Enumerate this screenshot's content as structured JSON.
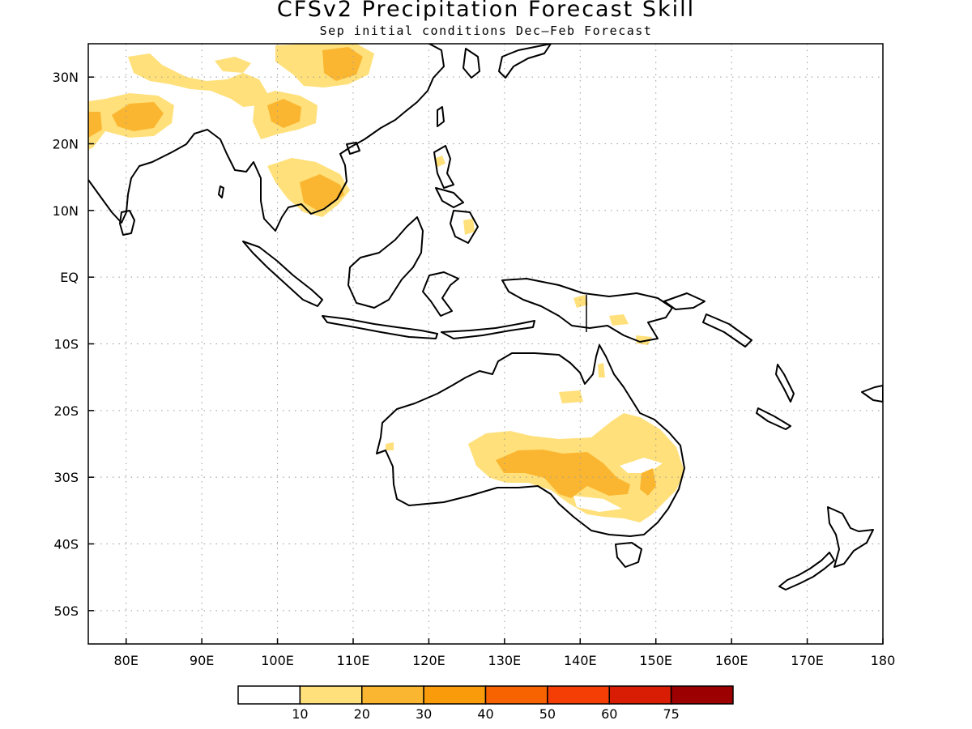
{
  "title": "CFSv2 Precipitation Forecast Skill",
  "subtitle": "Sep initial conditions  Dec–Feb Forecast",
  "map": {
    "lon_range": [
      75,
      180
    ],
    "lat_range": [
      -55,
      35
    ],
    "lat_ticks": [
      {
        "lat": 30,
        "label": "30N"
      },
      {
        "lat": 20,
        "label": "20N"
      },
      {
        "lat": 10,
        "label": "10N"
      },
      {
        "lat": 0,
        "label": "EQ"
      },
      {
        "lat": -10,
        "label": "10S"
      },
      {
        "lat": -20,
        "label": "20S"
      },
      {
        "lat": -30,
        "label": "30S"
      },
      {
        "lat": -40,
        "label": "40S"
      },
      {
        "lat": -50,
        "label": "50S"
      }
    ],
    "lon_ticks": [
      {
        "lon": 80,
        "label": "80E"
      },
      {
        "lon": 90,
        "label": "90E"
      },
      {
        "lon": 100,
        "label": "100E"
      },
      {
        "lon": 110,
        "label": "110E"
      },
      {
        "lon": 120,
        "label": "120E"
      },
      {
        "lon": 130,
        "label": "130E"
      },
      {
        "lon": 140,
        "label": "140E"
      },
      {
        "lon": 150,
        "label": "150E"
      },
      {
        "lon": 160,
        "label": "160E"
      },
      {
        "lon": 170,
        "label": "170E"
      },
      {
        "lon": 180,
        "label": "180"
      }
    ],
    "gridlines": "dotted",
    "skill_regions": [
      {
        "name": "south-asia-skill",
        "level": 20,
        "color": "#fbb631"
      },
      {
        "name": "himalaya-skill",
        "level": 10,
        "color": "#ffe07a"
      },
      {
        "name": "indochina-skill",
        "level": 20,
        "color": "#fbb631"
      },
      {
        "name": "australia-skill",
        "level": 20,
        "color": "#fbb631"
      },
      {
        "name": "new-guinea-skill",
        "level": 10,
        "color": "#ffe07a"
      }
    ]
  },
  "colorbar": {
    "colors": [
      "#ffffff",
      "#ffe07a",
      "#fbb631",
      "#f99b0b",
      "#f76300",
      "#f43e05",
      "#d91d04",
      "#9d0000"
    ],
    "labels": [
      "10",
      "20",
      "30",
      "40",
      "50",
      "60",
      "75"
    ]
  }
}
